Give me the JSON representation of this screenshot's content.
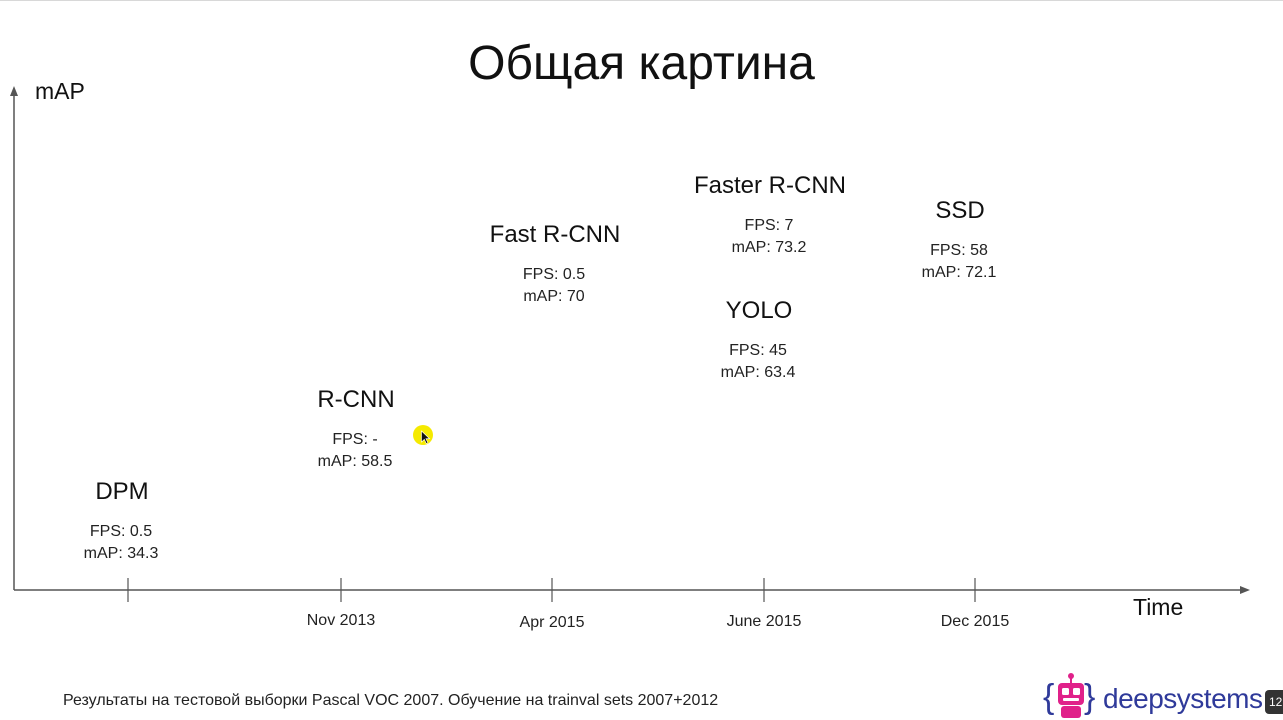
{
  "page_title": "Общая картина",
  "footer": {
    "note": "Результаты на тестовой выборки Pascal VOC 2007. Обучение на trainval sets 2007+2012",
    "brand": "deepsystems.",
    "time_badge": "12:"
  },
  "colors": {
    "axis": "#555555",
    "cursor_highlight": "#f5ea00",
    "brand": "#2f3a9a",
    "robot": "#e0218a"
  },
  "icons": {
    "cursor": "mouse-pointer-icon",
    "logo": "robot-logo-icon"
  },
  "chart_data": {
    "type": "scatter",
    "title": "",
    "xlabel": "Time",
    "ylabel": "mAP",
    "grid": false,
    "legend": "none",
    "x_ticks": [
      "",
      "Nov 2013",
      "Apr 2015",
      "June 2015",
      "Dec 2015"
    ],
    "points": [
      {
        "model": "DPM",
        "x": "",
        "fps": "FPS: 0.5",
        "map_label": "mAP: 34.3",
        "map": 34.3
      },
      {
        "model": "R-CNN",
        "x": "Nov 2013",
        "fps": "FPS: -",
        "map_label": "mAP: 58.5",
        "map": 58.5
      },
      {
        "model": "Fast R-CNN",
        "x": "Apr 2015",
        "fps": "FPS: 0.5",
        "map_label": "mAP: 70",
        "map": 70
      },
      {
        "model": "Faster R-CNN",
        "x": "June 2015",
        "fps": "FPS: 7",
        "map_label": "mAP: 73.2",
        "map": 73.2
      },
      {
        "model": "YOLO",
        "x": "June 2015",
        "fps": "FPS: 45",
        "map_label": "mAP: 63.4",
        "map": 63.4
      },
      {
        "model": "SSD",
        "x": "Dec 2015",
        "fps": "FPS: 58",
        "map_label": "mAP: 72.1",
        "map": 72.1
      }
    ]
  }
}
